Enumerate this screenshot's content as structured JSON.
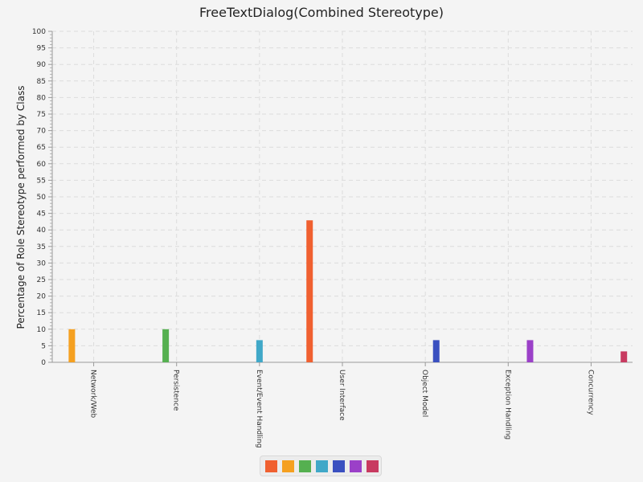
{
  "chart_data": {
    "type": "bar",
    "title": "FreeTextDialog(Combined Stereotype)",
    "xlabel": "",
    "ylabel": "Percentage of Role Stereotype performed by Class",
    "ylim": [
      0,
      100
    ],
    "y_ticks": [
      0,
      5,
      10,
      15,
      20,
      25,
      30,
      35,
      40,
      45,
      50,
      55,
      60,
      65,
      70,
      75,
      80,
      85,
      90,
      95,
      100
    ],
    "grid": true,
    "legend_position": "bottom-center",
    "categories": [
      "Network/Web",
      "Persistence",
      "Event/Event Handling",
      "User Interface",
      "Object Model",
      "Exception Handling",
      "Concurrency"
    ],
    "series": [
      {
        "color": "#f06030",
        "values": [
          0,
          0,
          0,
          42.9,
          0,
          0,
          0
        ]
      },
      {
        "color": "#f5a020",
        "values": [
          10,
          0,
          0,
          0,
          0,
          0,
          0
        ]
      },
      {
        "color": "#55b050",
        "values": [
          0,
          10,
          0,
          0,
          0,
          0,
          0
        ]
      },
      {
        "color": "#40a8c8",
        "values": [
          0,
          0,
          6.7,
          0,
          0,
          0,
          0
        ]
      },
      {
        "color": "#3a50c0",
        "values": [
          0,
          0,
          0,
          0,
          6.7,
          0,
          0
        ]
      },
      {
        "color": "#9b40c8",
        "values": [
          0,
          0,
          0,
          0,
          0,
          6.7,
          0
        ]
      },
      {
        "color": "#c83a60",
        "values": [
          0,
          0,
          0,
          0,
          0,
          0,
          3.3
        ]
      }
    ]
  }
}
